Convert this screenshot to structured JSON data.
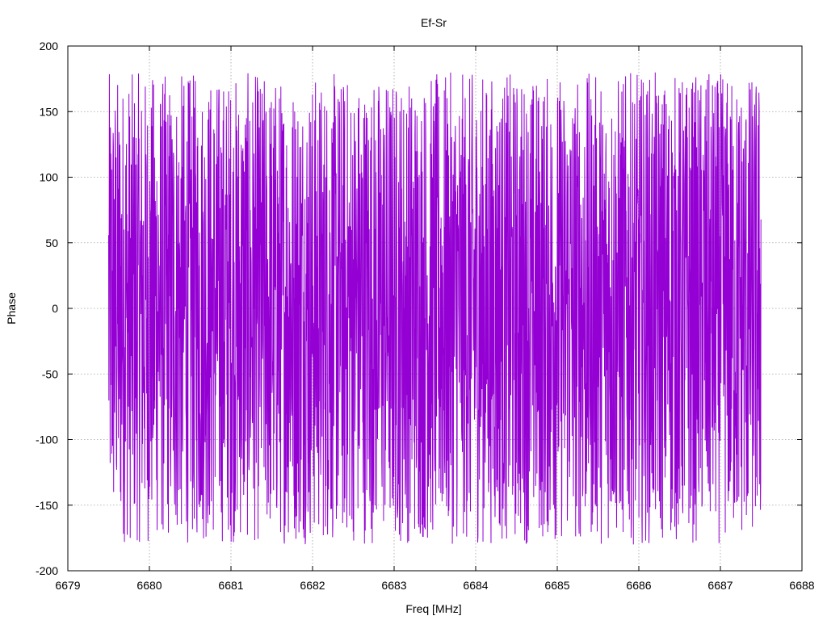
{
  "chart_data": {
    "type": "line",
    "title": "Ef-Sr",
    "xlabel": "Freq [MHz]",
    "ylabel": "Phase",
    "xlim": [
      6679,
      6688
    ],
    "ylim": [
      -200,
      200
    ],
    "x_ticks": [
      6679,
      6680,
      6681,
      6682,
      6683,
      6684,
      6685,
      6686,
      6687,
      6688
    ],
    "y_ticks": [
      -200,
      -150,
      -100,
      -50,
      0,
      50,
      100,
      150,
      200
    ],
    "grid": true,
    "series": [
      {
        "color": "#9400d3",
        "x_start": 6679.5,
        "x_end": 6687.5,
        "y_min": -180,
        "y_max": 180,
        "description_values": "dense phase sweep wrapping between -180 and 180 degrees"
      }
    ]
  }
}
